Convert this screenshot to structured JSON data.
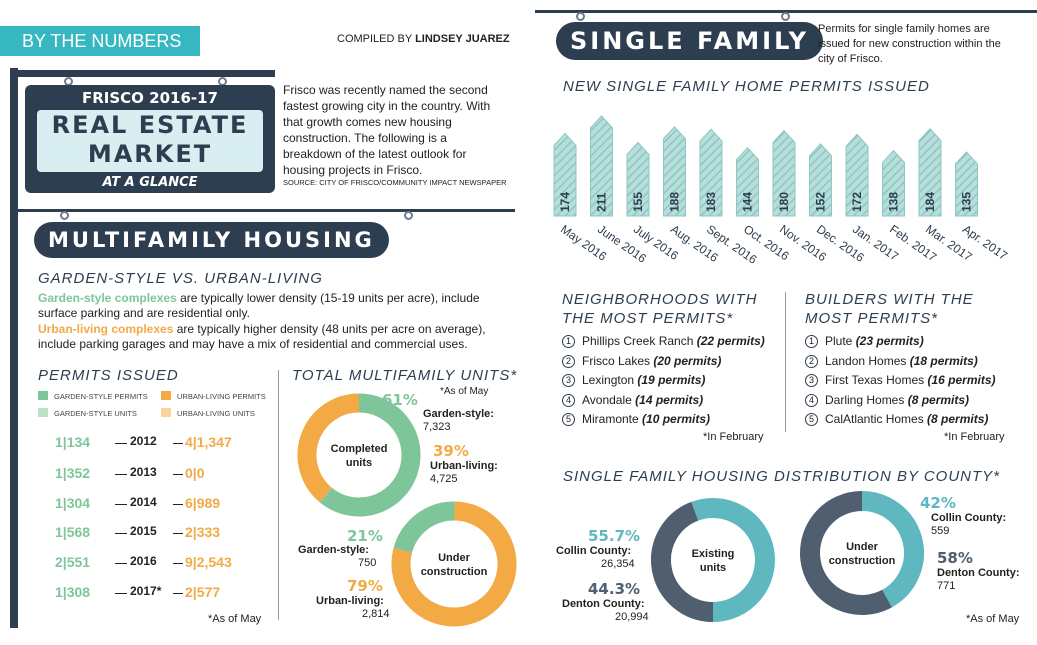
{
  "header": {
    "by_the_numbers": "BY THE NUMBERS",
    "compiled_by_prefix": "COMPILED BY",
    "compiled_by_name": "LINDSEY JUAREZ"
  },
  "sign": {
    "line1": "FRISCO 2016-17",
    "line2": "REAL ESTATE",
    "line3": "MARKET",
    "line4": "AT A GLANCE"
  },
  "intro": {
    "text": "Frisco was recently named the second fastest growing city in the country. With that growth comes new housing construction. The following is a breakdown of the latest outlook for housing projects in Frisco.",
    "source": "SOURCE: CITY OF FRISCO/COMMUNITY IMPACT NEWSPAPER"
  },
  "multifamily": {
    "title": "MULTIFAMILY HOUSING",
    "sub_heading": "GARDEN-STYLE VS. URBAN-LIVING",
    "garden_term": "Garden-style complexes",
    "garden_desc": " are typically lower density (15-19 units per acre), include surface parking and are residential only.",
    "urban_term": "Urban-living complexes",
    "urban_desc": " are typically higher density (48 units per acre on average), include parking garages and may have a mix of residential and commercial uses."
  },
  "permits": {
    "heading": "PERMITS ISSUED",
    "legend": [
      "GARDEN-STYLE PERMITS",
      "URBAN-LIVING PERMITS",
      "GARDEN-STYLE UNITS",
      "URBAN-LIVING UNITS"
    ],
    "rows": [
      {
        "left": "1|134",
        "year": "2012",
        "right": "4|1,347"
      },
      {
        "left": "1|352",
        "year": "2013",
        "right": "0|0"
      },
      {
        "left": "1|304",
        "year": "2014",
        "right": "6|989"
      },
      {
        "left": "1|568",
        "year": "2015",
        "right": "2|333"
      },
      {
        "left": "2|551",
        "year": "2016",
        "right": "9|2,543"
      },
      {
        "left": "1|308",
        "year": "2017*",
        "right": "2|577"
      }
    ],
    "footnote": "*As of May"
  },
  "total_units": {
    "heading": "TOTAL MULTIFAMILY UNITS*",
    "as_of": "*As of May",
    "completed": {
      "center": "Completed units",
      "garden_pct": "61%",
      "garden_label": "Garden-style:",
      "garden_value": "7,323",
      "urban_pct": "39%",
      "urban_label": "Urban-living:",
      "urban_value": "4,725"
    },
    "construction": {
      "center": "Under construction",
      "garden_pct": "21%",
      "garden_label": "Garden-style:",
      "garden_value": "750",
      "urban_pct": "79%",
      "urban_label": "Urban-living:",
      "urban_value": "2,814"
    }
  },
  "single_family": {
    "title": "SINGLE FAMILY",
    "desc": "Permits for single family homes are issued for new construction within the city of Frisco.",
    "permits_heading": "NEW SINGLE FAMILY HOME PERMITS ISSUED"
  },
  "neighborhoods": {
    "heading": "NEIGHBORHOODS WITH THE MOST PERMITS*",
    "items": [
      {
        "n": "1",
        "name": "Phillips Creek Ranch",
        "count": "(22 permits)"
      },
      {
        "n": "2",
        "name": "Frisco Lakes",
        "count": "(20 permits)"
      },
      {
        "n": "3",
        "name": "Lexington",
        "count": "(19 permits)"
      },
      {
        "n": "4",
        "name": "Avondale",
        "count": "(14 permits)"
      },
      {
        "n": "5",
        "name": "Miramonte",
        "count": "(10 permits)"
      }
    ],
    "footnote": "*In February"
  },
  "builders": {
    "heading": "BUILDERS WITH THE MOST PERMITS*",
    "items": [
      {
        "n": "1",
        "name": "Plute",
        "count": "(23 permits)"
      },
      {
        "n": "2",
        "name": "Landon Homes",
        "count": "(18 permits)"
      },
      {
        "n": "3",
        "name": "First Texas Homes",
        "count": "(16 permits)"
      },
      {
        "n": "4",
        "name": "Darling Homes",
        "count": "(8 permits)"
      },
      {
        "n": "5",
        "name": "CalAtlantic Homes",
        "count": "(8 permits)"
      }
    ],
    "footnote": "*In February"
  },
  "distribution": {
    "heading": "SINGLE FAMILY HOUSING DISTRIBUTION BY COUNTY*",
    "existing": {
      "center": "Existing units",
      "collin_pct": "55.7%",
      "collin_label": "Collin County:",
      "collin_value": "26,354",
      "denton_pct": "44.3%",
      "denton_label": "Denton County:",
      "denton_value": "20,994"
    },
    "construction": {
      "center": "Under construction",
      "collin_pct": "42%",
      "collin_label": "Collin County:",
      "collin_value": "559",
      "denton_pct": "58%",
      "denton_label": "Denton County:",
      "denton_value": "771"
    },
    "as_of": "*As of May"
  },
  "colors": {
    "navy": "#2d3e50",
    "garden_green": "#7ec69a",
    "urban_orange": "#f3aa45",
    "collin_teal": "#5fb8c0",
    "denton_slate": "#4f5f70",
    "house_bar": "#9fd0cc"
  },
  "chart_data": [
    {
      "type": "bar",
      "categories": [
        "May 2016",
        "June 2016",
        "July 2016",
        "Aug. 2016",
        "Sept. 2016",
        "Oct. 2016",
        "Nov. 2016",
        "Dec. 2016",
        "Jan. 2017",
        "Feb. 2017",
        "Mar. 2017",
        "Apr. 2017"
      ],
      "values": [
        174,
        211,
        155,
        188,
        183,
        144,
        180,
        152,
        172,
        138,
        184,
        135
      ],
      "title": "NEW SINGLE FAMILY HOME PERMITS ISSUED"
    },
    {
      "type": "pie",
      "title": "Completed units",
      "labels": [
        "Garden-style",
        "Urban-living"
      ],
      "values": [
        61,
        39
      ],
      "colors": [
        "#7ec69a",
        "#f3aa45"
      ]
    },
    {
      "type": "pie",
      "title": "Under construction",
      "labels": [
        "Garden-style",
        "Urban-living"
      ],
      "values": [
        21,
        79
      ],
      "colors": [
        "#7ec69a",
        "#f3aa45"
      ]
    },
    {
      "type": "pie",
      "title": "Existing units",
      "labels": [
        "Collin County",
        "Denton County"
      ],
      "values": [
        55.7,
        44.3
      ],
      "colors": [
        "#5fb8c0",
        "#4f5f70"
      ]
    },
    {
      "type": "pie",
      "title": "Under construction",
      "labels": [
        "Collin County",
        "Denton County"
      ],
      "values": [
        42,
        58
      ],
      "colors": [
        "#5fb8c0",
        "#4f5f70"
      ]
    }
  ]
}
